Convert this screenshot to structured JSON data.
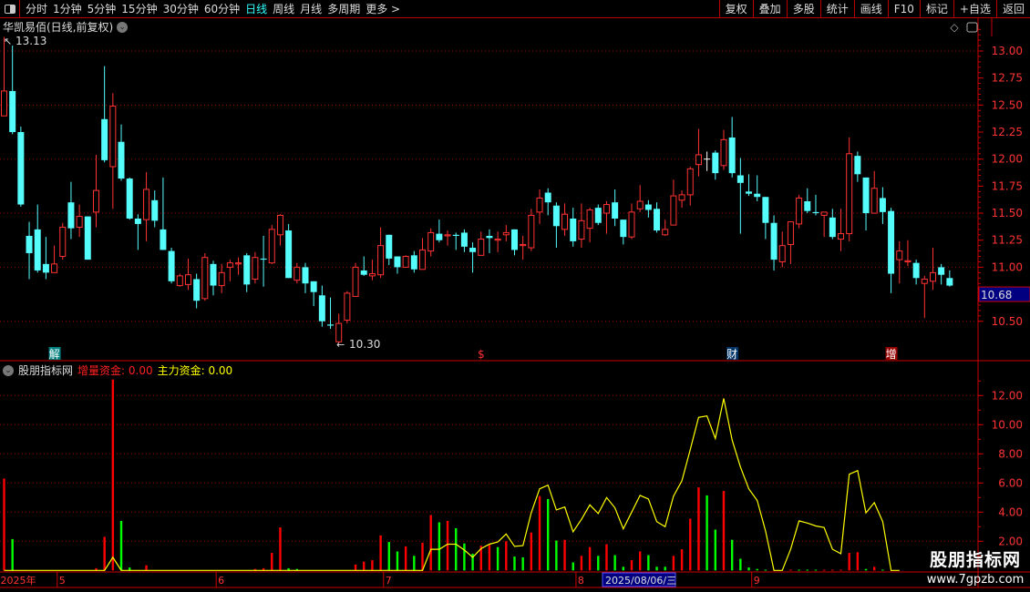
{
  "toolbar": {
    "periods": [
      "分时",
      "1分钟",
      "5分钟",
      "15分钟",
      "30分钟",
      "60分钟",
      "日线",
      "周线",
      "月线",
      "多周期",
      "更多 >"
    ],
    "active_period": "日线",
    "buttons": [
      "复权",
      "叠加",
      "多股",
      "统计",
      "画线",
      "F10",
      "标记",
      "+自选",
      "返回"
    ]
  },
  "chart": {
    "title": "华凯易佰(日线,前复权)",
    "high_label": "13.13",
    "low_label": "10.30",
    "current_price": "10.68",
    "price_ticks": [
      "13.00",
      "12.75",
      "12.50",
      "12.25",
      "12.00",
      "11.75",
      "11.50",
      "11.25",
      "11.00",
      "10.50"
    ],
    "markers": [
      {
        "text": "解",
        "i": 7,
        "style": "teal"
      },
      {
        "text": "$",
        "i": 58,
        "style": "red"
      },
      {
        "text": "财",
        "i": 88,
        "style": "navy"
      },
      {
        "text": "增",
        "i": 107,
        "style": "darkred"
      }
    ]
  },
  "indicator": {
    "name": "股朋指标网",
    "s1_label": "增量资金: 0.00",
    "s2_label": "主力资金: 0.00",
    "ticks": [
      "12.00",
      "10.00",
      "8.00",
      "6.00",
      "4.00",
      "2.00"
    ]
  },
  "xaxis": {
    "labels": [
      {
        "t": "2025年",
        "i": 1
      },
      {
        "t": "5",
        "i": 8
      },
      {
        "t": "6",
        "i": 27
      },
      {
        "t": "7",
        "i": 47
      },
      {
        "t": "8",
        "i": 70
      },
      {
        "t": "9",
        "i": 91
      }
    ],
    "cursor_date": "2025/08/06/三"
  },
  "watermark": {
    "line1": "股朋指标网",
    "line2": "www.7gpzb.com"
  },
  "colors": {
    "up": "#ff3333",
    "down": "#54fcfc",
    "grid": "#990000",
    "line": "#ffff00",
    "bar_red": "#ff0000",
    "bar_green": "#00ff00"
  },
  "chart_data": {
    "type": "candlestick",
    "candles_ohlc": [
      [
        12.4,
        13.13,
        12.4,
        12.63
      ],
      [
        12.63,
        13.05,
        12.23,
        12.25
      ],
      [
        12.25,
        12.3,
        11.56,
        11.58
      ],
      [
        11.29,
        11.42,
        10.89,
        11.13
      ],
      [
        11.35,
        11.58,
        10.95,
        10.97
      ],
      [
        11.03,
        11.28,
        10.89,
        10.95
      ],
      [
        10.95,
        11.2,
        10.95,
        11.03
      ],
      [
        11.1,
        11.41,
        11.07,
        11.37
      ],
      [
        11.6,
        11.79,
        11.26,
        11.36
      ],
      [
        11.37,
        11.58,
        11.28,
        11.47
      ],
      [
        11.47,
        11.47,
        11.07,
        11.07
      ],
      [
        11.51,
        12.04,
        11.37,
        11.71
      ],
      [
        12.37,
        12.86,
        11.97,
        11.99
      ],
      [
        11.93,
        12.61,
        11.54,
        12.49
      ],
      [
        12.16,
        12.32,
        11.8,
        11.82
      ],
      [
        11.82,
        11.83,
        11.44,
        11.45
      ],
      [
        11.45,
        11.49,
        11.16,
        11.4
      ],
      [
        11.44,
        11.88,
        11.24,
        11.72
      ],
      [
        11.62,
        11.71,
        11.37,
        11.43
      ],
      [
        11.35,
        11.83,
        11.16,
        11.16
      ],
      [
        11.15,
        11.18,
        10.85,
        10.87
      ],
      [
        10.83,
        10.94,
        10.82,
        10.92
      ],
      [
        10.84,
        11.08,
        10.79,
        10.93
      ],
      [
        10.89,
        10.94,
        10.62,
        10.69
      ],
      [
        10.71,
        11.13,
        10.69,
        11.09
      ],
      [
        11.03,
        11.06,
        10.74,
        10.83
      ],
      [
        10.83,
        11.03,
        10.76,
        10.95
      ],
      [
        11.0,
        11.07,
        10.87,
        11.04
      ],
      [
        11.03,
        11.09,
        10.93,
        11.04
      ],
      [
        11.11,
        11.13,
        10.77,
        10.84
      ],
      [
        10.89,
        11.14,
        10.85,
        11.09
      ],
      [
        11.08,
        11.29,
        10.82,
        11.07
      ],
      [
        11.04,
        11.39,
        11.03,
        11.35
      ],
      [
        11.3,
        11.49,
        11.2,
        11.48
      ],
      [
        11.34,
        11.4,
        10.9,
        10.9
      ],
      [
        10.88,
        11.04,
        10.85,
        11.0
      ],
      [
        11.0,
        11.04,
        10.76,
        10.85
      ],
      [
        10.87,
        10.87,
        10.64,
        10.77
      ],
      [
        10.74,
        10.83,
        10.45,
        10.5
      ],
      [
        10.47,
        10.72,
        10.43,
        10.46
      ],
      [
        10.31,
        10.57,
        10.3,
        10.48
      ],
      [
        10.51,
        10.78,
        10.48,
        10.76
      ],
      [
        10.73,
        11.04,
        10.73,
        11.0
      ],
      [
        10.97,
        11.1,
        10.92,
        10.93
      ],
      [
        10.92,
        11.07,
        10.88,
        10.94
      ],
      [
        10.93,
        11.37,
        10.9,
        11.2
      ],
      [
        11.3,
        11.3,
        11.02,
        11.08
      ],
      [
        11.1,
        11.1,
        10.94,
        11.0
      ],
      [
        11.0,
        11.11,
        11.0,
        11.1
      ],
      [
        11.11,
        11.15,
        10.95,
        10.98
      ],
      [
        10.98,
        11.27,
        10.98,
        11.16
      ],
      [
        11.15,
        11.36,
        11.1,
        11.32
      ],
      [
        11.31,
        11.44,
        11.23,
        11.25
      ],
      [
        11.29,
        11.34,
        11.2,
        11.3
      ],
      [
        11.3,
        11.32,
        11.16,
        11.29
      ],
      [
        11.32,
        11.35,
        11.14,
        11.19
      ],
      [
        11.18,
        11.23,
        10.95,
        11.14
      ],
      [
        11.11,
        11.33,
        11.11,
        11.26
      ],
      [
        11.29,
        11.35,
        11.13,
        11.27
      ],
      [
        11.25,
        11.33,
        11.14,
        11.26
      ],
      [
        11.3,
        11.39,
        11.24,
        11.32
      ],
      [
        11.35,
        11.35,
        11.11,
        11.16
      ],
      [
        11.2,
        11.29,
        11.07,
        11.21
      ],
      [
        11.18,
        11.54,
        11.15,
        11.48
      ],
      [
        11.51,
        11.72,
        11.4,
        11.64
      ],
      [
        11.69,
        11.73,
        11.48,
        11.6
      ],
      [
        11.57,
        11.6,
        11.18,
        11.38
      ],
      [
        11.35,
        11.59,
        11.29,
        11.49
      ],
      [
        11.45,
        11.55,
        11.19,
        11.24
      ],
      [
        11.26,
        11.59,
        11.18,
        11.43
      ],
      [
        11.36,
        11.55,
        11.23,
        11.53
      ],
      [
        11.55,
        11.58,
        11.39,
        11.41
      ],
      [
        11.5,
        11.61,
        11.31,
        11.58
      ],
      [
        11.6,
        11.72,
        11.38,
        11.45
      ],
      [
        11.44,
        11.44,
        11.21,
        11.28
      ],
      [
        11.28,
        11.59,
        11.26,
        11.51
      ],
      [
        11.54,
        11.76,
        11.51,
        11.61
      ],
      [
        11.58,
        11.62,
        11.46,
        11.53
      ],
      [
        11.54,
        11.6,
        11.32,
        11.34
      ],
      [
        11.3,
        11.44,
        11.29,
        11.35
      ],
      [
        11.39,
        11.81,
        11.39,
        11.66
      ],
      [
        11.62,
        11.71,
        11.55,
        11.67
      ],
      [
        11.67,
        11.93,
        11.57,
        11.91
      ],
      [
        11.95,
        12.28,
        11.84,
        12.04
      ],
      [
        12.0,
        12.07,
        11.89,
        12.0
      ],
      [
        12.06,
        12.08,
        11.81,
        11.87
      ],
      [
        11.94,
        12.27,
        11.9,
        12.18
      ],
      [
        12.2,
        12.39,
        11.83,
        11.87
      ],
      [
        11.85,
        12.01,
        11.31,
        11.78
      ],
      [
        11.7,
        11.86,
        11.66,
        11.68
      ],
      [
        11.68,
        11.85,
        11.61,
        11.65
      ],
      [
        11.65,
        11.65,
        11.26,
        11.41
      ],
      [
        11.41,
        11.48,
        10.97,
        11.07
      ],
      [
        11.05,
        11.33,
        11.0,
        11.2
      ],
      [
        11.21,
        11.42,
        11.03,
        11.42
      ],
      [
        11.4,
        11.67,
        11.36,
        11.64
      ],
      [
        11.61,
        11.73,
        11.5,
        11.52
      ],
      [
        11.51,
        11.67,
        11.48,
        11.5
      ],
      [
        11.48,
        11.51,
        11.28,
        11.51
      ],
      [
        11.46,
        11.54,
        11.26,
        11.28
      ],
      [
        11.26,
        11.54,
        11.15,
        11.31
      ],
      [
        11.31,
        12.2,
        11.24,
        12.05
      ],
      [
        12.03,
        12.07,
        11.79,
        11.86
      ],
      [
        11.83,
        11.83,
        11.34,
        11.5
      ],
      [
        11.5,
        11.89,
        11.5,
        11.73
      ],
      [
        11.64,
        11.74,
        11.4,
        11.51
      ],
      [
        11.52,
        11.55,
        10.76,
        10.94
      ],
      [
        11.07,
        11.24,
        10.85,
        11.15
      ],
      [
        11.05,
        11.25,
        11.01,
        11.06
      ],
      [
        11.04,
        11.07,
        10.84,
        10.9
      ],
      [
        10.85,
        10.92,
        10.53,
        10.89
      ],
      [
        10.87,
        11.18,
        10.79,
        10.95
      ],
      [
        11.0,
        11.03,
        10.84,
        10.93
      ],
      [
        10.9,
        10.97,
        10.82,
        10.83
      ]
    ],
    "price_range": [
      10.28,
      13.28
    ],
    "indicator_range": [
      0,
      13.8
    ],
    "indicator_bars": [
      [
        1,
        6.3,
        "r"
      ],
      [
        2,
        2.15,
        "g"
      ],
      [
        12,
        0.15,
        "r"
      ],
      [
        13,
        2.3,
        "r"
      ],
      [
        14,
        13.1,
        "r"
      ],
      [
        15,
        3.4,
        "g"
      ],
      [
        16,
        0.2,
        "g"
      ],
      [
        18,
        0.35,
        "r"
      ],
      [
        31,
        0.1,
        "r"
      ],
      [
        32,
        0.15,
        "r"
      ],
      [
        33,
        1.2,
        "r"
      ],
      [
        34,
        2.95,
        "r"
      ],
      [
        35,
        0.15,
        "g"
      ],
      [
        36,
        0.1,
        "g"
      ],
      [
        43,
        0.4,
        "r"
      ],
      [
        44,
        0.6,
        "r"
      ],
      [
        45,
        0.7,
        "r"
      ],
      [
        46,
        2.4,
        "r"
      ],
      [
        47,
        1.95,
        "g"
      ],
      [
        48,
        1.3,
        "g"
      ],
      [
        49,
        1.65,
        "r"
      ],
      [
        50,
        1.0,
        "g"
      ],
      [
        51,
        1.9,
        "r"
      ],
      [
        52,
        3.8,
        "r"
      ],
      [
        53,
        3.3,
        "g"
      ],
      [
        54,
        3.4,
        "r"
      ],
      [
        55,
        2.9,
        "g"
      ],
      [
        56,
        1.85,
        "g"
      ],
      [
        57,
        1.15,
        "g"
      ],
      [
        58,
        1.7,
        "r"
      ],
      [
        59,
        1.75,
        "r"
      ],
      [
        60,
        1.6,
        "g"
      ],
      [
        61,
        2.0,
        "r"
      ],
      [
        62,
        0.95,
        "g"
      ],
      [
        63,
        0.9,
        "g"
      ],
      [
        64,
        2.6,
        "r"
      ],
      [
        65,
        5.1,
        "r"
      ],
      [
        66,
        4.9,
        "g"
      ],
      [
        67,
        2.05,
        "g"
      ],
      [
        68,
        2.1,
        "r"
      ],
      [
        69,
        0.55,
        "g"
      ],
      [
        70,
        1.0,
        "r"
      ],
      [
        71,
        1.6,
        "r"
      ],
      [
        72,
        1.0,
        "g"
      ],
      [
        73,
        1.8,
        "r"
      ],
      [
        74,
        1.05,
        "g"
      ],
      [
        75,
        0.25,
        "g"
      ],
      [
        76,
        0.7,
        "r"
      ],
      [
        77,
        1.3,
        "r"
      ],
      [
        78,
        1.05,
        "g"
      ],
      [
        79,
        0.25,
        "g"
      ],
      [
        80,
        0.25,
        "g"
      ],
      [
        81,
        1.0,
        "r"
      ],
      [
        82,
        1.45,
        "r"
      ],
      [
        83,
        3.55,
        "r"
      ],
      [
        84,
        5.7,
        "r"
      ],
      [
        85,
        5.15,
        "g"
      ],
      [
        86,
        2.8,
        "g"
      ],
      [
        87,
        5.45,
        "r"
      ],
      [
        88,
        2.1,
        "g"
      ],
      [
        89,
        0.8,
        "g"
      ],
      [
        90,
        0.2,
        "g"
      ],
      [
        91,
        0.1,
        "g"
      ],
      [
        92,
        0.05,
        "g"
      ],
      [
        95,
        0.05,
        "r"
      ],
      [
        96,
        0.05,
        "g"
      ],
      [
        97,
        0.05,
        "g"
      ],
      [
        98,
        0.05,
        "g"
      ],
      [
        99,
        0.05,
        "r"
      ],
      [
        100,
        0.05,
        "r"
      ],
      [
        101,
        0.05,
        "r"
      ],
      [
        102,
        1.2,
        "r"
      ],
      [
        103,
        1.25,
        "r"
      ],
      [
        104,
        0.1,
        "g"
      ],
      [
        105,
        0.25,
        "r"
      ],
      [
        106,
        0.05,
        "g"
      ]
    ],
    "indicator_line": [
      0,
      0,
      0,
      0,
      0,
      0,
      0,
      0,
      0,
      0,
      0,
      0,
      0,
      0.9,
      0,
      0,
      0,
      0,
      0,
      0,
      0,
      0,
      0,
      0,
      0,
      0,
      0,
      0,
      0,
      0,
      0,
      0,
      0,
      0,
      0,
      0,
      0,
      0,
      0,
      0,
      0,
      0,
      0,
      0,
      0,
      0,
      0,
      0,
      0,
      0,
      0,
      1.45,
      1.45,
      1.8,
      1.8,
      1.4,
      0.9,
      1.5,
      1.8,
      1.95,
      2.5,
      1.65,
      1.7,
      3.95,
      5.6,
      5.85,
      4.15,
      4.35,
      2.65,
      3.5,
      4.5,
      3.9,
      5.0,
      4.3,
      2.85,
      4.0,
      5.15,
      4.9,
      3.35,
      3.0,
      5.1,
      6.15,
      8.3,
      10.5,
      10.6,
      9.05,
      11.8,
      8.95,
      7.1,
      5.6,
      4.8,
      2.7,
      0,
      0,
      1.45,
      3.4,
      3.25,
      3.05,
      2.95,
      1.45,
      1.15,
      6.6,
      6.85,
      3.95,
      4.65,
      3.35,
      0,
      0
    ]
  }
}
